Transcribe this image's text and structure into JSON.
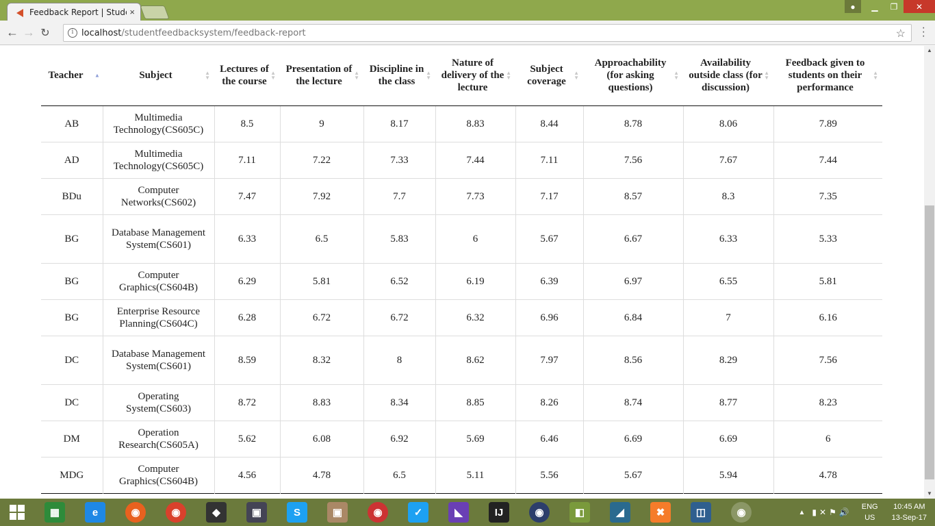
{
  "browser": {
    "tab_title": "Feedback Report | Stude",
    "close_glyph": "×",
    "url_host": "localhost",
    "url_path": "/studentfeedbacksystem/feedback-report"
  },
  "table": {
    "headers": [
      "Teacher",
      "Subject",
      "Lectures of the course",
      "Presentation of the lecture",
      "Discipline in the class",
      "Nature of delivery of the lecture",
      "Subject coverage",
      "Approachability (for asking questions)",
      "Availability outside class (for discussion)",
      "Feedback given to students on their performance"
    ],
    "rows": [
      [
        "AB",
        "Multimedia Technology(CS605C)",
        "8.5",
        "9",
        "8.17",
        "8.83",
        "8.44",
        "8.78",
        "8.06",
        "7.89"
      ],
      [
        "AD",
        "Multimedia Technology(CS605C)",
        "7.11",
        "7.22",
        "7.33",
        "7.44",
        "7.11",
        "7.56",
        "7.67",
        "7.44"
      ],
      [
        "BDu",
        "Computer Networks(CS602)",
        "7.47",
        "7.92",
        "7.7",
        "7.73",
        "7.17",
        "8.57",
        "8.3",
        "7.35"
      ],
      [
        "BG",
        "Database Management System(CS601)",
        "6.33",
        "6.5",
        "5.83",
        "6",
        "5.67",
        "6.67",
        "6.33",
        "5.33"
      ],
      [
        "BG",
        "Computer Graphics(CS604B)",
        "6.29",
        "5.81",
        "6.52",
        "6.19",
        "6.39",
        "6.97",
        "6.55",
        "5.81"
      ],
      [
        "BG",
        "Enterprise Resource Planning(CS604C)",
        "6.28",
        "6.72",
        "6.72",
        "6.32",
        "6.96",
        "6.84",
        "7",
        "6.16"
      ],
      [
        "DC",
        "Database Management System(CS601)",
        "8.59",
        "8.32",
        "8",
        "8.62",
        "7.97",
        "8.56",
        "8.29",
        "7.56"
      ],
      [
        "DC",
        "Operating System(CS603)",
        "8.72",
        "8.83",
        "8.34",
        "8.85",
        "8.26",
        "8.74",
        "8.77",
        "8.23"
      ],
      [
        "DM",
        "Operation Research(CS605A)",
        "5.62",
        "6.08",
        "6.92",
        "5.69",
        "6.46",
        "6.69",
        "6.69",
        "6"
      ],
      [
        "MDG",
        "Computer Graphics(CS604B)",
        "4.56",
        "4.78",
        "6.5",
        "5.11",
        "5.56",
        "5.67",
        "5.94",
        "4.78"
      ]
    ]
  },
  "taskbar": {
    "icons": [
      "windows-store",
      "internet-explorer",
      "firefox",
      "chrome",
      "app-silhouette",
      "app-photo",
      "skype",
      "app-image",
      "app-media",
      "twitter",
      "visual-studio",
      "intellij",
      "eclipse",
      "notepad-plus",
      "mysql-workbench",
      "xampp",
      "app-square",
      "chrome-active"
    ],
    "lang_top": "ENG",
    "lang_bottom": "US",
    "time": "10:45 AM",
    "date": "13-Sep-17"
  }
}
